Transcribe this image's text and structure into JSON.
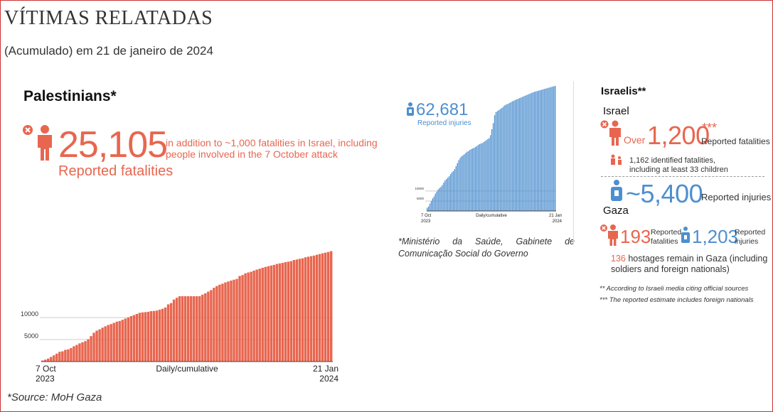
{
  "header": {
    "title": "VÍTIMAS RELATADAS",
    "subtitle": "(Acumulado) em 21 de janeiro de 2024"
  },
  "palestinians": {
    "heading": "Palestinians*",
    "fatalities": "25,105",
    "note": "in addition to ~1,000 fatalities in Israel, including people involved in the 7 October attack",
    "fatalities_label": "Reported fatalities",
    "injuries": "62,681",
    "injuries_label": "Reported injuries",
    "source": "*Source: MoH Gaza",
    "ministry_source_line1": "*Ministério da Saúde, Gabinete de",
    "ministry_source_line2": "Comunicação Social do Governo"
  },
  "israelis": {
    "heading": "Israelis**",
    "israel_label": "Israel",
    "over": "Over",
    "fatalities": "1,200",
    "fatalities_stars": "***",
    "fatalities_label": "Reported fatalities",
    "identified_line1": "1,162 identified fatalities,",
    "identified_line2": "including at least 33 children",
    "injuries": "~5,400",
    "injuries_label": "Reported injuries",
    "gaza_label": "Gaza",
    "gaza_fatalities": "193",
    "gaza_fatalities_label_1": "Reported",
    "gaza_fatalities_label_2": "fatalities",
    "gaza_injuries": "1,203",
    "gaza_injuries_label_1": "Reported",
    "gaza_injuries_label_2": "injuries",
    "hostages_num": "136",
    "hostages_line1": "hostages remain in Gaza (including",
    "hostages_line2": "soldiers and foreign nationals)",
    "footnote1": "** According to Israeli media citing official sources",
    "footnote2": "*** The reported estimate includes foreign nationals"
  },
  "colors": {
    "fatality": "#e8664f",
    "injury": "#4d8fcf"
  },
  "icons": [
    "person-fatality-icon",
    "person-injured-icon",
    "family-icon"
  ],
  "chart_data": [
    {
      "type": "bar",
      "series_label": "Palestinian reported fatalities (cumulative)",
      "x_start": "7 Oct 2023",
      "x_end": "21 Jan 2024",
      "x_start_label": [
        "7 Oct",
        "2023"
      ],
      "x_end_label": [
        "21 Jan",
        "2024"
      ],
      "xlabel": "Daily/cumulative",
      "yticks": [
        5000,
        10000
      ],
      "ylim": [
        0,
        26000
      ],
      "grid": true,
      "values": [
        232,
        436,
        687,
        1055,
        1417,
        1799,
        2215,
        2329,
        2670,
        2778,
        3061,
        3478,
        3785,
        4137,
        4385,
        4651,
        5087,
        5791,
        6546,
        7028,
        7326,
        7703,
        8005,
        8306,
        8525,
        8796,
        9061,
        9227,
        9488,
        9770,
        10022,
        10328,
        10569,
        10812,
        11078,
        11180,
        11240,
        11320,
        11470,
        11500,
        11600,
        11800,
        12000,
        12300,
        13000,
        13300,
        14100,
        14500,
        14854,
        14854,
        14854,
        14854,
        14854,
        14854,
        14854,
        14854,
        15207,
        15523,
        15899,
        16248,
        16780,
        17177,
        17487,
        17700,
        17997,
        18205,
        18412,
        18608,
        18787,
        19453,
        19667,
        20057,
        20258,
        20424,
        20674,
        20915,
        21110,
        21320,
        21507,
        21672,
        21822,
        21978,
        22185,
        22313,
        22438,
        22600,
        22722,
        22835,
        23084,
        23210,
        23357,
        23469,
        23708,
        23843,
        23968,
        24100,
        24285,
        24448,
        24620,
        24762,
        24927,
        25105
      ]
    },
    {
      "type": "bar",
      "series_label": "Palestinian reported injuries (cumulative)",
      "x_start": "7 Oct 2023",
      "x_end": "21 Jan 2024",
      "x_start_label": [
        "7 Oct",
        "2023"
      ],
      "x_end_label": [
        "21 Jan",
        "2024"
      ],
      "xlabel": "Daily/cumulative",
      "yticks": [
        5000,
        10000
      ],
      "ylim": [
        0,
        63000
      ],
      "grid": true,
      "values": [
        1610,
        2300,
        3700,
        5000,
        6300,
        7300,
        8700,
        9700,
        10800,
        11500,
        12100,
        13000,
        14200,
        15300,
        16000,
        16700,
        17400,
        18500,
        19400,
        20000,
        21000,
        22500,
        24000,
        25500,
        26600,
        27400,
        27900,
        28400,
        29100,
        29700,
        30000,
        30600,
        31000,
        31300,
        31600,
        32000,
        32500,
        33000,
        33500,
        33800,
        34000,
        34500,
        35000,
        35500,
        36000,
        36500,
        38000,
        41000,
        44000,
        48000,
        49500,
        50000,
        50500,
        51000,
        51500,
        52000,
        52800,
        53200,
        53500,
        53800,
        54200,
        54600,
        55000,
        55300,
        55600,
        55900,
        56200,
        56500,
        56800,
        57100,
        57400,
        57700,
        58000,
        58300,
        58600,
        58900,
        59200,
        59500,
        59700,
        59900,
        60100,
        60300,
        60500,
        60700,
        60900,
        61100,
        61300,
        61500,
        61700,
        61900,
        62100,
        62300,
        62500,
        62681
      ]
    }
  ]
}
